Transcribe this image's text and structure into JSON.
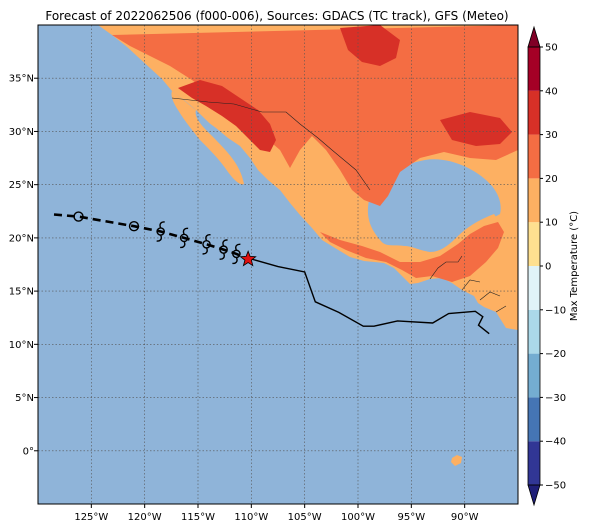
{
  "title": "Forecast of 2022062506 (f000-006), Sources: GDACS (TC track), GFS (Meteo)",
  "map": {
    "lon_range": [
      -130,
      -85
    ],
    "lat_range": [
      -5,
      40
    ],
    "lon_ticks": [
      {
        "value": -125,
        "label": "125°W"
      },
      {
        "value": -120,
        "label": "120°W"
      },
      {
        "value": -115,
        "label": "115°W"
      },
      {
        "value": -110,
        "label": "110°W"
      },
      {
        "value": -105,
        "label": "105°W"
      },
      {
        "value": -100,
        "label": "100°W"
      },
      {
        "value": -95,
        "label": "95°W"
      },
      {
        "value": -90,
        "label": "90°W"
      }
    ],
    "lat_ticks": [
      {
        "value": 35,
        "label": "35°N"
      },
      {
        "value": 30,
        "label": "30°N"
      },
      {
        "value": 25,
        "label": "25°N"
      },
      {
        "value": 20,
        "label": "20°N"
      },
      {
        "value": 15,
        "label": "15°N"
      },
      {
        "value": 10,
        "label": "10°N"
      },
      {
        "value": 5,
        "label": "5°N"
      },
      {
        "value": 0,
        "label": "0°"
      }
    ],
    "colors": {
      "ocean": "#8fb4d9",
      "land_warm": "#fdb062",
      "land_hot": "#f46d43",
      "land_very_hot": "#d73027",
      "grid": "#555555"
    }
  },
  "track": {
    "forecast_path": [
      [
        -128.5,
        22.2
      ],
      [
        -126.2,
        22.0
      ],
      [
        -121,
        21.1
      ],
      [
        -118.5,
        20.6
      ],
      [
        -116.3,
        20.0
      ],
      [
        -114.2,
        19.4
      ],
      [
        -112.6,
        18.9
      ],
      [
        -111.4,
        18.5
      ],
      [
        -110.3,
        18.0
      ]
    ],
    "past_points": [
      [
        -126.2,
        22.0
      ],
      [
        -121,
        21.1
      ]
    ],
    "storm_points": [
      [
        -118.5,
        20.6
      ],
      [
        -116.3,
        20.0
      ],
      [
        -114.2,
        19.4
      ],
      [
        -112.6,
        18.9
      ],
      [
        -111.4,
        18.5
      ]
    ],
    "current_position": [
      -110.3,
      18.0
    ],
    "wind_buffer": [
      [
        -110.3,
        18.1
      ],
      [
        -107.5,
        17.3
      ],
      [
        -105,
        16.8
      ],
      [
        -104,
        14.0
      ],
      [
        -101.8,
        13.0
      ],
      [
        -99.5,
        11.7
      ],
      [
        -98.5,
        11.7
      ],
      [
        -96.3,
        12.2
      ],
      [
        -93,
        12.0
      ],
      [
        -91.5,
        12.9
      ],
      [
        -89,
        13.1
      ],
      [
        -88.3,
        12.6
      ],
      [
        -88.7,
        11.8
      ],
      [
        -87.7,
        11.0
      ]
    ]
  },
  "colorbar": {
    "label": "Max Temperature (°C)",
    "min": -50,
    "max": 50,
    "ticks": [
      {
        "value": 50,
        "label": "50"
      },
      {
        "value": 40,
        "label": "40"
      },
      {
        "value": 30,
        "label": "30"
      },
      {
        "value": 20,
        "label": "20"
      },
      {
        "value": 10,
        "label": "10"
      },
      {
        "value": 0,
        "label": "0"
      },
      {
        "value": -10,
        "label": "−10"
      },
      {
        "value": -20,
        "label": "−20"
      },
      {
        "value": -30,
        "label": "−30"
      },
      {
        "value": -40,
        "label": "−40"
      },
      {
        "value": -50,
        "label": "−50"
      }
    ],
    "bands": [
      {
        "from": -50,
        "to": -40,
        "color": "#313695"
      },
      {
        "from": -40,
        "to": -30,
        "color": "#4575b4"
      },
      {
        "from": -30,
        "to": -20,
        "color": "#74add1"
      },
      {
        "from": -20,
        "to": -10,
        "color": "#abd9e9"
      },
      {
        "from": -10,
        "to": 0,
        "color": "#e0f3f8"
      },
      {
        "from": 0,
        "to": 10,
        "color": "#fee090"
      },
      {
        "from": 10,
        "to": 20,
        "color": "#fdb062"
      },
      {
        "from": 20,
        "to": 30,
        "color": "#f46d43"
      },
      {
        "from": 30,
        "to": 40,
        "color": "#d73027"
      },
      {
        "from": 40,
        "to": 50,
        "color": "#a50026"
      }
    ],
    "under_color": "#1f1f78",
    "over_color": "#800026"
  }
}
